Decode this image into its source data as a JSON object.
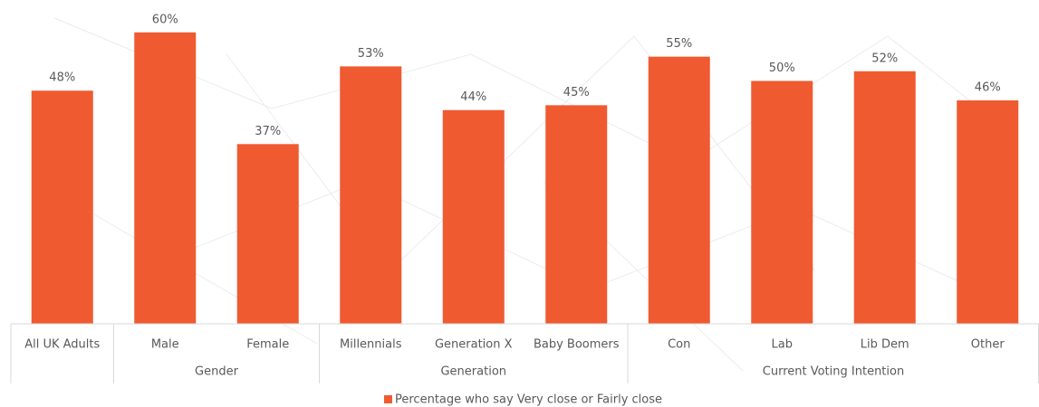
{
  "chart_data": {
    "type": "bar",
    "categories": [
      "All UK Adults",
      "Male",
      "Female",
      "Millennials",
      "Generation X",
      "Baby Boomers",
      "Con",
      "Lab",
      "Lib Dem",
      "Other"
    ],
    "category_groups": [
      null,
      "Gender",
      "Gender",
      "Generation",
      "Generation",
      "Generation",
      "Current Voting Intention",
      "Current Voting Intention",
      "Current Voting Intention",
      "Current Voting Intention"
    ],
    "series": [
      {
        "name": "Percentage who say Very close or Fairly close",
        "color": "#f05a30",
        "values": [
          48,
          60,
          37,
          53,
          44,
          45,
          55,
          50,
          52,
          46
        ],
        "value_labels": [
          "48%",
          "60%",
          "37%",
          "53%",
          "44%",
          "45%",
          "55%",
          "50%",
          "52%",
          "46%"
        ]
      }
    ],
    "legend": "bottom"
  }
}
